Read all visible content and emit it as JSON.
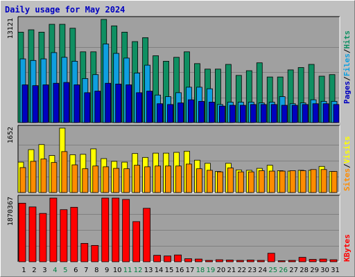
{
  "title": "Daily usage for May 2024",
  "colors": {
    "hits": "#0f8f62",
    "files": "#0f9fdf",
    "pages": "#0000c0",
    "visits": "#ffff00",
    "sites": "#ff8c00",
    "kbytes": "#ff0000",
    "panel_bg": "#a0a0a0",
    "grid": "#808080",
    "weekend_label": "#008040",
    "weekday_label": "#000000"
  },
  "legends": {
    "top": [
      "Pages",
      "/",
      "Files",
      "/",
      "Hits"
    ],
    "middle": [
      "Sites",
      "/",
      "Visits"
    ],
    "bottom": [
      "KBytes"
    ]
  },
  "chart_data": [
    {
      "type": "bar",
      "panel": "top",
      "max_label": "13121",
      "ylim": [
        0,
        13121
      ],
      "grid": true,
      "categories": [
        "1",
        "2",
        "3",
        "4",
        "5",
        "6",
        "7",
        "8",
        "9",
        "10",
        "11",
        "12",
        "13",
        "14",
        "15",
        "16",
        "17",
        "18",
        "19",
        "20",
        "21",
        "22",
        "23",
        "24",
        "25",
        "26",
        "27",
        "28",
        "29",
        "30",
        "31"
      ],
      "weekend_days": [
        "4",
        "5",
        "11",
        "12",
        "18",
        "19",
        "25",
        "26"
      ],
      "series": [
        {
          "name": "Hits",
          "values": [
            11500,
            11800,
            11500,
            12500,
            12500,
            12000,
            9000,
            9000,
            13121,
            12300,
            11500,
            10300,
            10800,
            8500,
            7800,
            8300,
            9000,
            7500,
            6800,
            6800,
            7400,
            6000,
            6600,
            7600,
            5800,
            5800,
            6700,
            7000,
            7400,
            5900,
            6100
          ]
        },
        {
          "name": "Files",
          "values": [
            8100,
            7900,
            8100,
            8900,
            8300,
            7800,
            5600,
            6100,
            10000,
            8800,
            8200,
            6300,
            7300,
            3500,
            3300,
            3800,
            4500,
            4500,
            4300,
            2300,
            2600,
            2600,
            2600,
            2500,
            2600,
            3300,
            2400,
            2500,
            2900,
            2700,
            2700
          ]
        },
        {
          "name": "Pages",
          "values": [
            4800,
            4700,
            4800,
            5000,
            5100,
            4800,
            3800,
            4000,
            5000,
            4900,
            4800,
            3800,
            4000,
            2400,
            2300,
            2500,
            2900,
            2700,
            2600,
            2100,
            2200,
            2200,
            2300,
            2300,
            2300,
            2200,
            2200,
            2300,
            2400,
            2400,
            2300
          ]
        }
      ]
    },
    {
      "type": "bar",
      "panel": "middle",
      "max_label": "1652",
      "ylim": [
        0,
        1652
      ],
      "grid": true,
      "categories": [
        "1",
        "2",
        "3",
        "4",
        "5",
        "6",
        "7",
        "8",
        "9",
        "10",
        "11",
        "12",
        "13",
        "14",
        "15",
        "16",
        "17",
        "18",
        "19",
        "20",
        "21",
        "22",
        "23",
        "24",
        "25",
        "26",
        "27",
        "28",
        "29",
        "30",
        "31"
      ],
      "series": [
        {
          "name": "Visits",
          "values": [
            780,
            1100,
            1230,
            950,
            1652,
            970,
            980,
            1120,
            870,
            800,
            780,
            1000,
            900,
            1010,
            1010,
            1030,
            1060,
            830,
            750,
            540,
            750,
            580,
            570,
            620,
            700,
            560,
            550,
            570,
            570,
            670,
            540
          ]
        },
        {
          "name": "Sites",
          "values": [
            640,
            800,
            860,
            770,
            1050,
            710,
            610,
            680,
            660,
            620,
            610,
            700,
            660,
            680,
            680,
            680,
            730,
            610,
            570,
            530,
            630,
            530,
            530,
            560,
            550,
            550,
            560,
            560,
            590,
            590,
            540
          ]
        }
      ]
    },
    {
      "type": "bar",
      "panel": "bottom",
      "max_label": "1870367",
      "ylim": [
        0,
        1870367
      ],
      "grid": true,
      "categories": [
        "1",
        "2",
        "3",
        "4",
        "5",
        "6",
        "7",
        "8",
        "9",
        "10",
        "11",
        "12",
        "13",
        "14",
        "15",
        "16",
        "17",
        "18",
        "19",
        "20",
        "21",
        "22",
        "23",
        "24",
        "25",
        "26",
        "27",
        "28",
        "29",
        "30",
        "31"
      ],
      "series": [
        {
          "name": "KBytes",
          "values": [
            1720000,
            1610000,
            1420000,
            1870367,
            1530000,
            1600000,
            540000,
            480000,
            1870367,
            1870367,
            1830000,
            1180000,
            1570000,
            190000,
            170000,
            200000,
            90000,
            80000,
            40000,
            60000,
            50000,
            40000,
            50000,
            40000,
            250000,
            30000,
            40000,
            130000,
            70000,
            80000,
            60000
          ]
        }
      ]
    }
  ]
}
